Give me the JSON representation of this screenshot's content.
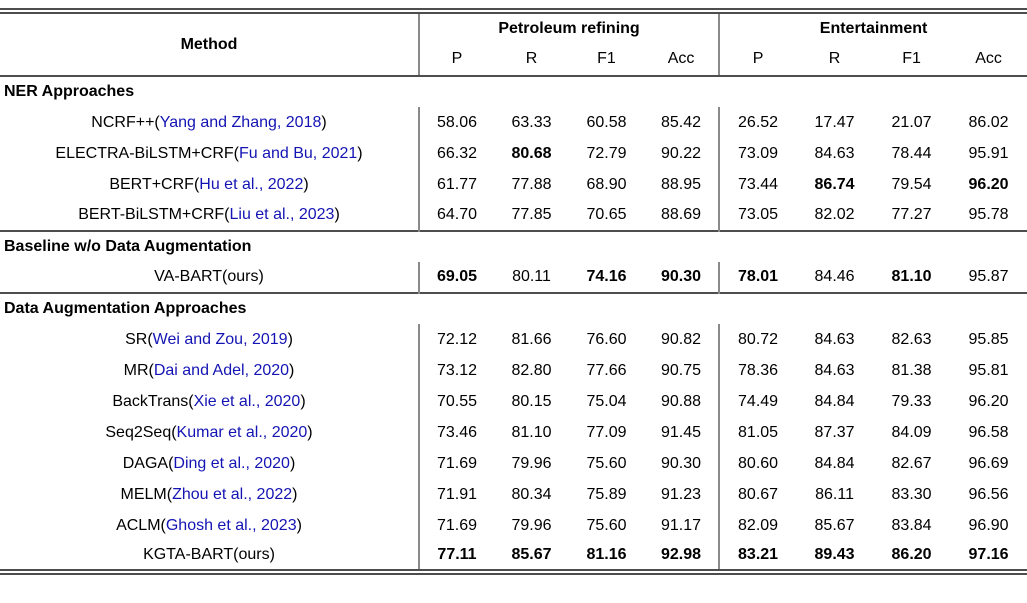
{
  "table": {
    "method_header": "Method",
    "groups": [
      {
        "label": "Petroleum refining",
        "cols": [
          "P",
          "R",
          "F1",
          "Acc"
        ]
      },
      {
        "label": "Entertainment",
        "cols": [
          "P",
          "R",
          "F1",
          "Acc"
        ]
      }
    ],
    "sections": [
      {
        "title": "NER Approaches",
        "rows": [
          {
            "name": "NCRF++",
            "cite": "Yang and Zhang, 2018",
            "cite_link": true,
            "values": [
              "58.06",
              "63.33",
              "60.58",
              "85.42",
              "26.52",
              "17.47",
              "21.07",
              "86.02"
            ],
            "bold": [
              0,
              0,
              0,
              0,
              0,
              0,
              0,
              0
            ]
          },
          {
            "name": "ELECTRA-BiLSTM+CRF",
            "cite": "Fu and Bu, 2021",
            "cite_link": true,
            "values": [
              "66.32",
              "80.68",
              "72.79",
              "90.22",
              "73.09",
              "84.63",
              "78.44",
              "95.91"
            ],
            "bold": [
              0,
              1,
              0,
              0,
              0,
              0,
              0,
              0
            ]
          },
          {
            "name": "BERT+CRF",
            "cite": "Hu et al., 2022",
            "cite_link": true,
            "values": [
              "61.77",
              "77.88",
              "68.90",
              "88.95",
              "73.44",
              "86.74",
              "79.54",
              "96.20"
            ],
            "bold": [
              0,
              0,
              0,
              0,
              0,
              1,
              0,
              1
            ]
          },
          {
            "name": "BERT-BiLSTM+CRF",
            "cite": "Liu et al., 2023",
            "cite_link": true,
            "values": [
              "64.70",
              "77.85",
              "70.65",
              "88.69",
              "73.05",
              "82.02",
              "77.27",
              "95.78"
            ],
            "bold": [
              0,
              0,
              0,
              0,
              0,
              0,
              0,
              0
            ]
          }
        ]
      },
      {
        "title": "Baseline w/o Data Augmentation",
        "rows": [
          {
            "name": "VA-BART",
            "cite": "ours",
            "cite_link": false,
            "values": [
              "69.05",
              "80.11",
              "74.16",
              "90.30",
              "78.01",
              "84.46",
              "81.10",
              "95.87"
            ],
            "bold": [
              1,
              0,
              1,
              1,
              1,
              0,
              1,
              0
            ]
          }
        ]
      },
      {
        "title": "Data Augmentation Approaches",
        "rows": [
          {
            "name": "SR",
            "cite": "Wei and Zou, 2019",
            "cite_link": true,
            "values": [
              "72.12",
              "81.66",
              "76.60",
              "90.82",
              "80.72",
              "84.63",
              "82.63",
              "95.85"
            ],
            "bold": [
              0,
              0,
              0,
              0,
              0,
              0,
              0,
              0
            ]
          },
          {
            "name": "MR",
            "cite": "Dai and Adel, 2020",
            "cite_link": true,
            "values": [
              "73.12",
              "82.80",
              "77.66",
              "90.75",
              "78.36",
              "84.63",
              "81.38",
              "95.81"
            ],
            "bold": [
              0,
              0,
              0,
              0,
              0,
              0,
              0,
              0
            ]
          },
          {
            "name": "BackTrans",
            "cite": "Xie et al., 2020",
            "cite_link": true,
            "values": [
              "70.55",
              "80.15",
              "75.04",
              "90.88",
              "74.49",
              "84.84",
              "79.33",
              "96.20"
            ],
            "bold": [
              0,
              0,
              0,
              0,
              0,
              0,
              0,
              0
            ]
          },
          {
            "name": "Seq2Seq",
            "cite": "Kumar et al., 2020",
            "cite_link": true,
            "values": [
              "73.46",
              "81.10",
              "77.09",
              "91.45",
              "81.05",
              "87.37",
              "84.09",
              "96.58"
            ],
            "bold": [
              0,
              0,
              0,
              0,
              0,
              0,
              0,
              0
            ]
          },
          {
            "name": "DAGA",
            "cite": "Ding et al., 2020",
            "cite_link": true,
            "values": [
              "71.69",
              "79.96",
              "75.60",
              "90.30",
              "80.60",
              "84.84",
              "82.67",
              "96.69"
            ],
            "bold": [
              0,
              0,
              0,
              0,
              0,
              0,
              0,
              0
            ]
          },
          {
            "name": "MELM",
            "cite": "Zhou et al., 2022",
            "cite_link": true,
            "values": [
              "71.91",
              "80.34",
              "75.89",
              "91.23",
              "80.67",
              "86.11",
              "83.30",
              "96.56"
            ],
            "bold": [
              0,
              0,
              0,
              0,
              0,
              0,
              0,
              0
            ]
          },
          {
            "name": "ACLM",
            "cite": "Ghosh et al., 2023",
            "cite_link": true,
            "values": [
              "71.69",
              "79.96",
              "75.60",
              "91.17",
              "82.09",
              "85.67",
              "83.84",
              "96.90"
            ],
            "bold": [
              0,
              0,
              0,
              0,
              0,
              0,
              0,
              0
            ]
          },
          {
            "name": "KGTA-BART",
            "cite": "ours",
            "cite_link": false,
            "values": [
              "77.11",
              "85.67",
              "81.16",
              "92.98",
              "83.21",
              "89.43",
              "86.20",
              "97.16"
            ],
            "bold": [
              1,
              1,
              1,
              1,
              1,
              1,
              1,
              1
            ]
          }
        ]
      }
    ]
  },
  "colors": {
    "citation_link": "#1414b4",
    "horizontal_rule": "#4d4d4d",
    "vertical_rule": "#8a8a8a",
    "text": "#000000"
  }
}
